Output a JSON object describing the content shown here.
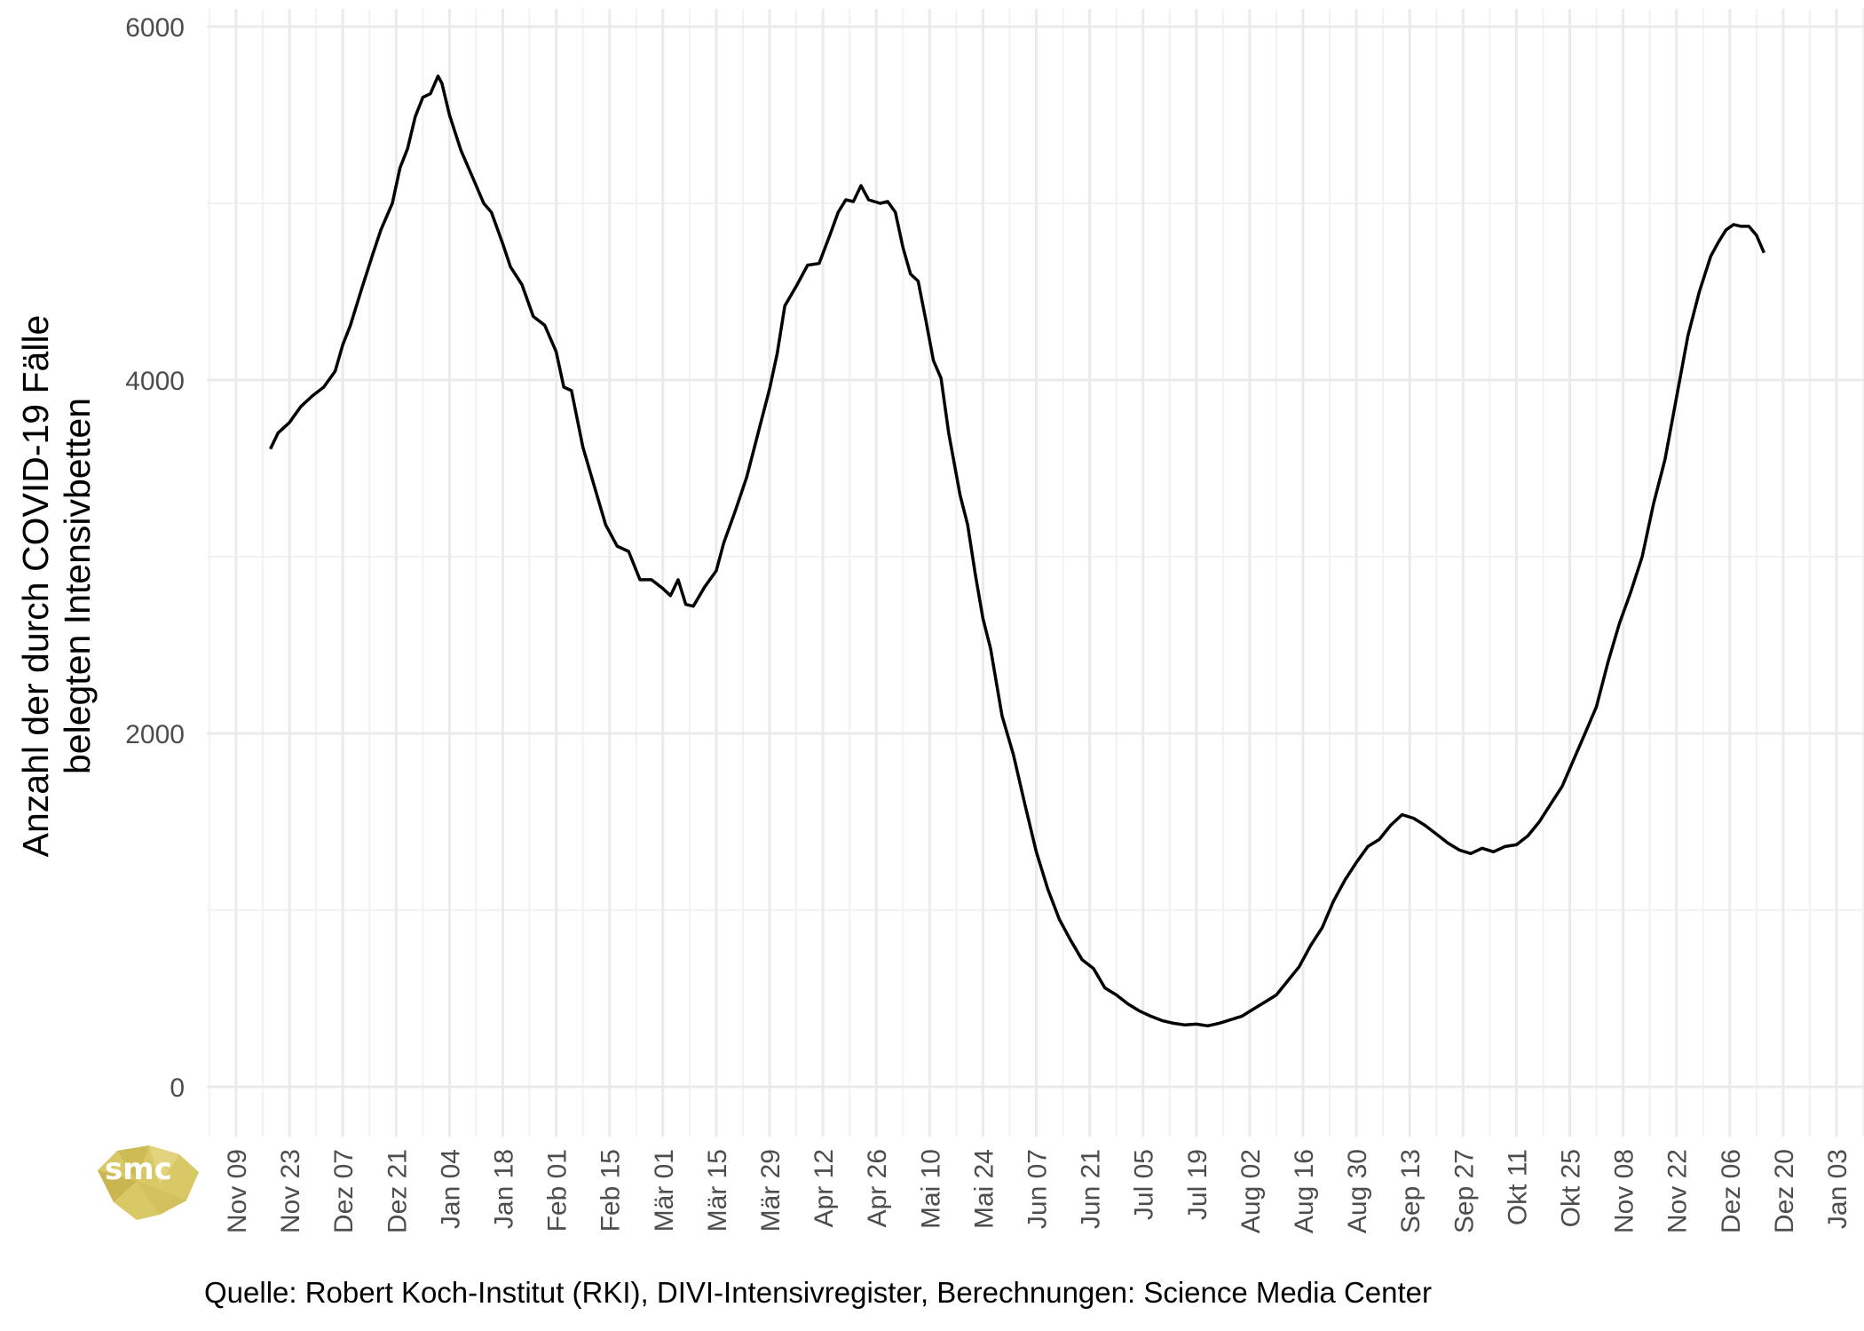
{
  "chart_data": {
    "type": "line",
    "title": "",
    "xlabel": "",
    "ylabel": "Anzahl der durch COVID-19 Fälle belegten Intensivbetten",
    "ylabel_lines": [
      "Anzahl der durch COVID-19 Fälle",
      "belegten Intensivbetten"
    ],
    "ylim": [
      -150,
      6000
    ],
    "y_ticks": [
      0,
      2000,
      4000,
      6000
    ],
    "y_tick_labels": [
      "0",
      "2000",
      "4000",
      "6000"
    ],
    "grid": true,
    "caption": "Quelle: Robert Koch-Institut (RKI), DIVI-Intensivregister, Berechnungen: Science Media Center",
    "x_ticks": [
      "2020-11-09",
      "2020-11-23",
      "2020-12-07",
      "2020-12-21",
      "2021-01-04",
      "2021-01-18",
      "2021-02-01",
      "2021-02-15",
      "2021-03-01",
      "2021-03-15",
      "2021-03-29",
      "2021-04-12",
      "2021-04-26",
      "2021-05-10",
      "2021-05-24",
      "2021-06-07",
      "2021-06-21",
      "2021-07-05",
      "2021-07-19",
      "2021-08-02",
      "2021-08-16",
      "2021-08-30",
      "2021-09-13",
      "2021-09-27",
      "2021-10-11",
      "2021-10-25",
      "2021-11-08",
      "2021-11-22",
      "2021-12-06",
      "2021-12-20",
      "2022-01-03"
    ],
    "x_tick_labels": [
      "Nov 09",
      "Nov 23",
      "Dez 07",
      "Dez 21",
      "Jan 04",
      "Jan 18",
      "Feb 01",
      "Feb 15",
      "Mär 01",
      "Mär 15",
      "Mär 29",
      "Apr 12",
      "Apr 26",
      "Mai 10",
      "Mai 24",
      "Jun 07",
      "Jun 21",
      "Jul 05",
      "Jul 19",
      "Aug 02",
      "Aug 16",
      "Aug 30",
      "Sep 13",
      "Sep 27",
      "Okt 11",
      "Okt 25",
      "Nov 08",
      "Nov 22",
      "Dez 06",
      "Dez 20",
      "Jan 03"
    ],
    "series": [
      {
        "color": "#000000",
        "points": [
          [
            "2020-11-18",
            3610
          ],
          [
            "2020-11-20",
            3700
          ],
          [
            "2020-11-23",
            3760
          ],
          [
            "2020-11-26",
            3850
          ],
          [
            "2020-11-29",
            3910
          ],
          [
            "2020-12-02",
            3960
          ],
          [
            "2020-12-05",
            4050
          ],
          [
            "2020-12-07",
            4200
          ],
          [
            "2020-12-09",
            4310
          ],
          [
            "2020-12-12",
            4520
          ],
          [
            "2020-12-15",
            4720
          ],
          [
            "2020-12-17",
            4850
          ],
          [
            "2020-12-20",
            5000
          ],
          [
            "2020-12-22",
            5200
          ],
          [
            "2020-12-24",
            5310
          ],
          [
            "2020-12-26",
            5490
          ],
          [
            "2020-12-28",
            5600
          ],
          [
            "2020-12-30",
            5620
          ],
          [
            "2021-01-01",
            5720
          ],
          [
            "2021-01-02",
            5680
          ],
          [
            "2021-01-04",
            5500
          ],
          [
            "2021-01-07",
            5300
          ],
          [
            "2021-01-10",
            5150
          ],
          [
            "2021-01-13",
            5000
          ],
          [
            "2021-01-15",
            4950
          ],
          [
            "2021-01-18",
            4770
          ],
          [
            "2021-01-20",
            4640
          ],
          [
            "2021-01-23",
            4540
          ],
          [
            "2021-01-26",
            4360
          ],
          [
            "2021-01-29",
            4310
          ],
          [
            "2021-02-01",
            4160
          ],
          [
            "2021-02-03",
            3960
          ],
          [
            "2021-02-05",
            3940
          ],
          [
            "2021-02-08",
            3620
          ],
          [
            "2021-02-11",
            3400
          ],
          [
            "2021-02-14",
            3180
          ],
          [
            "2021-02-17",
            3060
          ],
          [
            "2021-02-20",
            3030
          ],
          [
            "2021-02-23",
            2870
          ],
          [
            "2021-02-26",
            2870
          ],
          [
            "2021-03-01",
            2820
          ],
          [
            "2021-03-03",
            2780
          ],
          [
            "2021-03-05",
            2870
          ],
          [
            "2021-03-07",
            2730
          ],
          [
            "2021-03-09",
            2720
          ],
          [
            "2021-03-12",
            2830
          ],
          [
            "2021-03-15",
            2920
          ],
          [
            "2021-03-17",
            3080
          ],
          [
            "2021-03-20",
            3260
          ],
          [
            "2021-03-23",
            3450
          ],
          [
            "2021-03-26",
            3700
          ],
          [
            "2021-03-29",
            3950
          ],
          [
            "2021-03-31",
            4150
          ],
          [
            "2021-04-02",
            4420
          ],
          [
            "2021-04-05",
            4530
          ],
          [
            "2021-04-08",
            4650
          ],
          [
            "2021-04-11",
            4660
          ],
          [
            "2021-04-14",
            4830
          ],
          [
            "2021-04-16",
            4950
          ],
          [
            "2021-04-18",
            5020
          ],
          [
            "2021-04-20",
            5010
          ],
          [
            "2021-04-22",
            5100
          ],
          [
            "2021-04-24",
            5020
          ],
          [
            "2021-04-27",
            5000
          ],
          [
            "2021-04-29",
            5010
          ],
          [
            "2021-05-01",
            4950
          ],
          [
            "2021-05-03",
            4750
          ],
          [
            "2021-05-05",
            4600
          ],
          [
            "2021-05-07",
            4560
          ],
          [
            "2021-05-09",
            4340
          ],
          [
            "2021-05-11",
            4110
          ],
          [
            "2021-05-13",
            4010
          ],
          [
            "2021-05-15",
            3700
          ],
          [
            "2021-05-18",
            3350
          ],
          [
            "2021-05-20",
            3180
          ],
          [
            "2021-05-22",
            2900
          ],
          [
            "2021-05-24",
            2650
          ],
          [
            "2021-05-26",
            2480
          ],
          [
            "2021-05-29",
            2100
          ],
          [
            "2021-06-01",
            1880
          ],
          [
            "2021-06-04",
            1600
          ],
          [
            "2021-06-07",
            1330
          ],
          [
            "2021-06-10",
            1120
          ],
          [
            "2021-06-13",
            950
          ],
          [
            "2021-06-16",
            830
          ],
          [
            "2021-06-19",
            720
          ],
          [
            "2021-06-22",
            670
          ],
          [
            "2021-06-25",
            560
          ],
          [
            "2021-06-28",
            520
          ],
          [
            "2021-07-01",
            470
          ],
          [
            "2021-07-04",
            430
          ],
          [
            "2021-07-07",
            400
          ],
          [
            "2021-07-10",
            375
          ],
          [
            "2021-07-13",
            360
          ],
          [
            "2021-07-16",
            350
          ],
          [
            "2021-07-19",
            355
          ],
          [
            "2021-07-22",
            345
          ],
          [
            "2021-07-25",
            360
          ],
          [
            "2021-07-28",
            380
          ],
          [
            "2021-07-31",
            400
          ],
          [
            "2021-08-03",
            440
          ],
          [
            "2021-08-06",
            480
          ],
          [
            "2021-08-09",
            520
          ],
          [
            "2021-08-12",
            600
          ],
          [
            "2021-08-15",
            680
          ],
          [
            "2021-08-18",
            800
          ],
          [
            "2021-08-21",
            900
          ],
          [
            "2021-08-24",
            1050
          ],
          [
            "2021-08-27",
            1170
          ],
          [
            "2021-08-30",
            1270
          ],
          [
            "2021-09-02",
            1360
          ],
          [
            "2021-09-05",
            1400
          ],
          [
            "2021-09-08",
            1480
          ],
          [
            "2021-09-11",
            1540
          ],
          [
            "2021-09-14",
            1520
          ],
          [
            "2021-09-17",
            1480
          ],
          [
            "2021-09-20",
            1430
          ],
          [
            "2021-09-23",
            1380
          ],
          [
            "2021-09-26",
            1340
          ],
          [
            "2021-09-29",
            1320
          ],
          [
            "2021-10-02",
            1350
          ],
          [
            "2021-10-05",
            1330
          ],
          [
            "2021-10-08",
            1360
          ],
          [
            "2021-10-11",
            1370
          ],
          [
            "2021-10-14",
            1420
          ],
          [
            "2021-10-17",
            1500
          ],
          [
            "2021-10-20",
            1600
          ],
          [
            "2021-10-23",
            1700
          ],
          [
            "2021-10-26",
            1850
          ],
          [
            "2021-10-29",
            2000
          ],
          [
            "2021-11-01",
            2150
          ],
          [
            "2021-11-04",
            2400
          ],
          [
            "2021-11-07",
            2620
          ],
          [
            "2021-11-10",
            2800
          ],
          [
            "2021-11-13",
            3000
          ],
          [
            "2021-11-16",
            3300
          ],
          [
            "2021-11-19",
            3550
          ],
          [
            "2021-11-22",
            3900
          ],
          [
            "2021-11-25",
            4250
          ],
          [
            "2021-11-28",
            4500
          ],
          [
            "2021-12-01",
            4700
          ],
          [
            "2021-12-03",
            4780
          ],
          [
            "2021-12-05",
            4850
          ],
          [
            "2021-12-07",
            4880
          ],
          [
            "2021-12-09",
            4870
          ],
          [
            "2021-12-11",
            4870
          ],
          [
            "2021-12-13",
            4820
          ],
          [
            "2021-12-15",
            4720
          ]
        ]
      }
    ]
  }
}
